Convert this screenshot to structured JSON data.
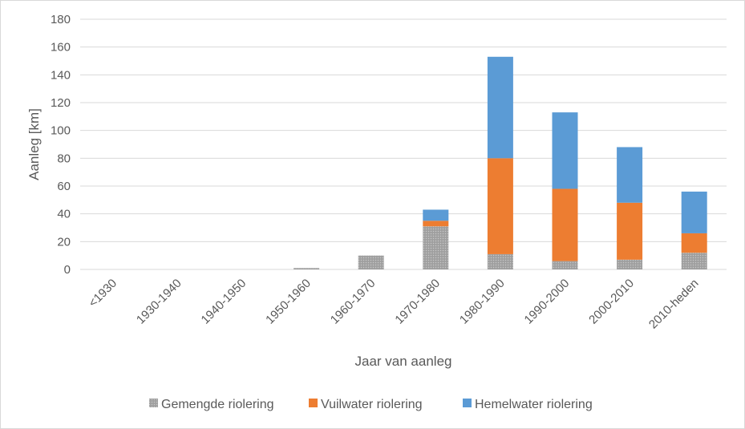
{
  "chart_data": {
    "type": "bar",
    "stacked": true,
    "title": "",
    "xlabel": "Jaar van aanleg",
    "ylabel": "Aanleg [km]",
    "ylim": [
      0,
      180
    ],
    "yticks": [
      0,
      20,
      40,
      60,
      80,
      100,
      120,
      140,
      160,
      180
    ],
    "grid": true,
    "legend_position": "bottom",
    "categories": [
      "<1930",
      "1930-1940",
      "1940-1950",
      "1950-1960",
      "1960-1970",
      "1970-1980",
      "1980-1990",
      "1990-2000",
      "2000-2010",
      "2010-heden"
    ],
    "series": [
      {
        "name": "Gemengde riolering",
        "color": "#a5a5a5",
        "pattern": "dotted-grey",
        "values": [
          0,
          0,
          0,
          1,
          10,
          31,
          11,
          6,
          7,
          12
        ]
      },
      {
        "name": "Vuilwater riolering",
        "color": "#ed7d31",
        "values": [
          0,
          0,
          0,
          0,
          0,
          4,
          69,
          52,
          41,
          14
        ]
      },
      {
        "name": "Hemelwater riolering",
        "color": "#5b9bd5",
        "values": [
          0,
          0,
          0,
          0,
          0,
          8,
          73,
          55,
          40,
          30
        ]
      }
    ]
  }
}
